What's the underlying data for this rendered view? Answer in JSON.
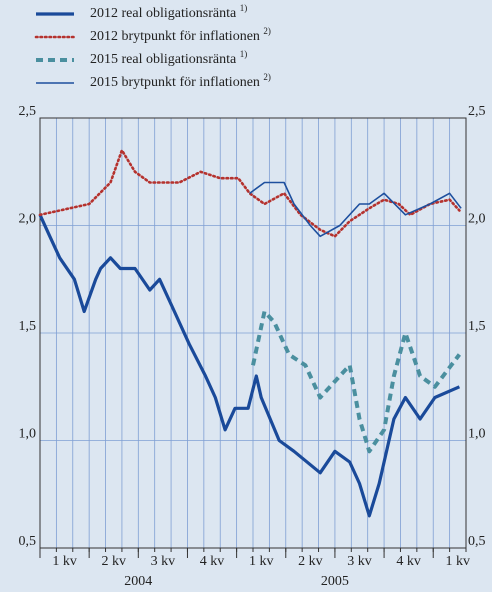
{
  "chart_data": {
    "type": "line",
    "quarters": [
      "1 kv",
      "2 kv",
      "3 kv",
      "4 kv",
      "1 kv",
      "2 kv",
      "3 kv",
      "4 kv",
      "1 kv"
    ],
    "years": [
      "2004",
      "2005"
    ],
    "xlim": [
      0,
      26
    ],
    "xticks": [
      0,
      1,
      2,
      3,
      4,
      5,
      6,
      7,
      8,
      9,
      10,
      11,
      12,
      13,
      14,
      15,
      16,
      17,
      18,
      19,
      20,
      21,
      22,
      23,
      24,
      25,
      26
    ],
    "ylim": [
      0.5,
      2.5
    ],
    "yticks": [
      {
        "value": 0.5,
        "label": "0,5"
      },
      {
        "value": 1.0,
        "label": "1,0"
      },
      {
        "value": 1.5,
        "label": "1,5"
      },
      {
        "value": 2.0,
        "label": "2,0"
      },
      {
        "value": 2.5,
        "label": "2,5"
      }
    ],
    "y2lim": [
      0.5,
      2.5
    ],
    "y2ticks": [
      {
        "value": 0.5,
        "label": "0,5"
      },
      {
        "value": 1.0,
        "label": "1,0"
      },
      {
        "value": 1.5,
        "label": "1,5"
      },
      {
        "value": 2.0,
        "label": "2,0"
      },
      {
        "value": 2.5,
        "label": "2,5"
      }
    ],
    "grid": true,
    "series": [
      {
        "name": "2012 real obligationsränta",
        "note": "1)",
        "color": "#1a4a9a",
        "style": "solid",
        "x": [
          0,
          0.6,
          1.2,
          2.1,
          2.7,
          3.4,
          3.7,
          4.3,
          4.9,
          5.8,
          6.7,
          7.3,
          8.2,
          9.1,
          10.1,
          10.7,
          11.3,
          11.9,
          12.7,
          13.2,
          13.5,
          14.6,
          15.5,
          17.1,
          18,
          18.9,
          19.5,
          20.1,
          20.7,
          21.6,
          22.3,
          23.2,
          24.1,
          25.6
        ],
        "values": [
          2.05,
          1.95,
          1.85,
          1.75,
          1.6,
          1.75,
          1.8,
          1.85,
          1.8,
          1.8,
          1.7,
          1.75,
          1.6,
          1.45,
          1.3,
          1.2,
          1.05,
          1.15,
          1.15,
          1.3,
          1.2,
          1.0,
          0.95,
          0.85,
          0.95,
          0.9,
          0.8,
          0.65,
          0.8,
          1.1,
          1.2,
          1.1,
          1.2,
          1.25
        ]
      },
      {
        "name": "2012 brytpunkt för inflationen",
        "note": "2)",
        "color": "#b5322e",
        "style": "dotted",
        "x": [
          0,
          1.2,
          3,
          4.3,
          5,
          5.8,
          6.7,
          8.5,
          9.8,
          11,
          12.1,
          12.8,
          13.7,
          14.9,
          15.9,
          17.1,
          18,
          18.9,
          20.1,
          21,
          21.9,
          22.6,
          23.8,
          25,
          25.6
        ],
        "values": [
          2.05,
          2.07,
          2.1,
          2.2,
          2.35,
          2.25,
          2.2,
          2.2,
          2.25,
          2.22,
          2.22,
          2.15,
          2.1,
          2.15,
          2.05,
          1.98,
          1.95,
          2.02,
          2.08,
          2.12,
          2.1,
          2.05,
          2.1,
          2.12,
          2.07
        ]
      },
      {
        "name": "2015 real obligationsränta",
        "note": "1)",
        "color": "#4a8f9f",
        "style": "dashed",
        "x": [
          13,
          13.7,
          14.3,
          15.2,
          16.2,
          17.1,
          18.3,
          18.9,
          19.5,
          20.1,
          21,
          21.6,
          22.3,
          23.2,
          24.1,
          25.6
        ],
        "values": [
          1.35,
          1.6,
          1.55,
          1.4,
          1.35,
          1.2,
          1.3,
          1.35,
          1.1,
          0.95,
          1.05,
          1.3,
          1.5,
          1.3,
          1.25,
          1.4
        ]
      },
      {
        "name": "2015 brytpunkt för inflationen",
        "note": "2)",
        "color": "#1d4f9e",
        "style": "thin",
        "x": [
          12.8,
          13.7,
          14.9,
          15.5,
          16.5,
          17.1,
          18.3,
          19.5,
          20.1,
          21,
          22.3,
          23.8,
          25,
          25.7
        ],
        "values": [
          2.15,
          2.2,
          2.2,
          2.1,
          2.0,
          1.95,
          2.0,
          2.1,
          2.1,
          2.15,
          2.05,
          2.1,
          2.15,
          2.08
        ]
      }
    ]
  }
}
